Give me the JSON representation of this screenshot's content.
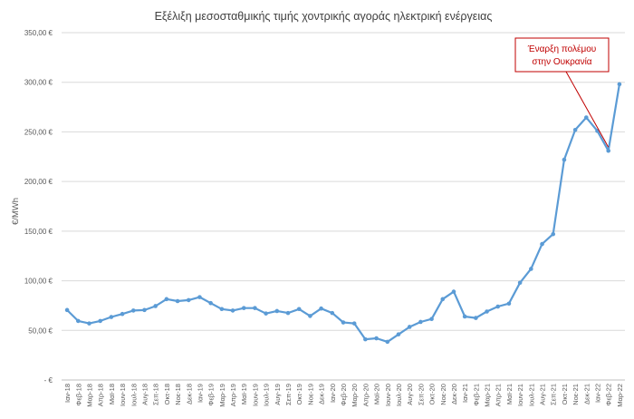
{
  "chart_data": {
    "type": "line",
    "title": "Εξέλιξη μεσοσταθμικής τιμής χοντρικής αγοράς ηλεκτρική ενέργειας",
    "ylabel": "€/MWh",
    "xlabel": "",
    "ylim": [
      0,
      350
    ],
    "yticks": [
      0,
      50,
      100,
      150,
      200,
      250,
      300,
      350
    ],
    "ytick_labels": [
      "-  €",
      "50,00  €",
      "100,00  €",
      "150,00  €",
      "200,00  €",
      "250,00  €",
      "300,00  €",
      "350,00  €"
    ],
    "categories": [
      "Ιαν-18",
      "Φεβ-18",
      "Μαρ-18",
      "Απρ-18",
      "Μαϊ-18",
      "Ιουν-18",
      "Ιουλ-18",
      "Αυγ-18",
      "Σεπ-18",
      "Οκτ-18",
      "Νοε-18",
      "Δεκ-18",
      "Ιαν-19",
      "Φεβ-19",
      "Μαρ-19",
      "Απρ-19",
      "Μαϊ-19",
      "Ιουν-19",
      "Ιουλ-19",
      "Αυγ-19",
      "Σεπ-19",
      "Οκτ-19",
      "Νοε-19",
      "Δεκ-19",
      "Ιαν-20",
      "Φεβ-20",
      "Μαρ-20",
      "Απρ-20",
      "Μαϊ-20",
      "Ιουν-20",
      "Ιουλ-20",
      "Αυγ-20",
      "Σεπ-20",
      "Οκτ-20",
      "Νοε-20",
      "Δεκ-20",
      "Ιαν-21",
      "Φεβ-21",
      "Μαρ-21",
      "Απρ-21",
      "Μαϊ-21",
      "Ιουν-21",
      "Ιουλ-21",
      "Αυγ-21",
      "Σεπ-21",
      "Οκτ-21",
      "Νοε-21",
      "Δεκ-21",
      "Ιαν-22",
      "Φεβ-22",
      "Μαρ-22"
    ],
    "series": [
      {
        "name": "",
        "values": [
          70.5,
          59.5,
          57,
          59.5,
          63.5,
          66.5,
          70,
          70.5,
          74.5,
          81.5,
          79.5,
          80.5,
          83.5,
          77.5,
          71.5,
          70,
          72.5,
          72.5,
          67,
          69.5,
          67.5,
          71.5,
          64.5,
          72,
          67.5,
          58,
          57,
          41,
          42,
          38.5,
          46,
          53.5,
          58.5,
          61.5,
          81.5,
          89,
          64,
          62.5,
          69,
          74,
          77,
          98,
          112,
          137,
          147,
          222,
          252,
          264.5,
          251,
          231,
          298
        ]
      }
    ],
    "annotation": {
      "lines": [
        "Έναρξη πολέμου",
        "στην Ουκρανία"
      ],
      "points_to": "Φεβ-22"
    },
    "grid": true,
    "legend": "none",
    "colors": {
      "line": "#5b9bd5",
      "grid": "#d9d9d9",
      "axis": "#bfbfbf",
      "text": "#595959",
      "annotation": "#c00000"
    }
  }
}
